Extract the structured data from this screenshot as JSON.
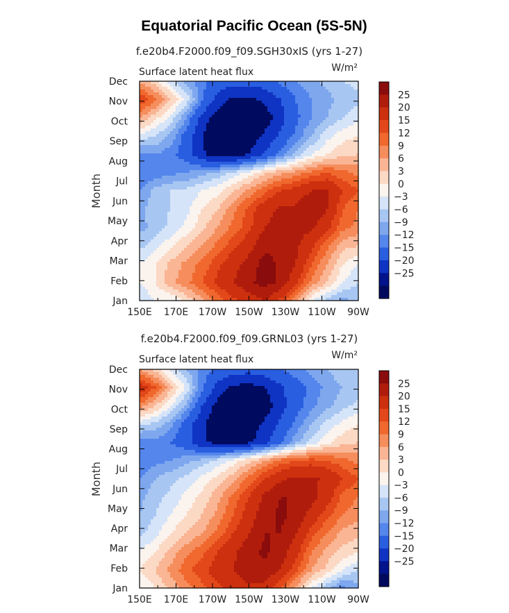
{
  "figure": {
    "title": "Equatorial Pacific Ocean (5S-5N)"
  },
  "chart_data": [
    {
      "type": "heatmap",
      "title": "f.e20b4.F2000.f09_f09.SGH30xIS (yrs 1-27)",
      "subtitle_left": "Surface latent heat flux",
      "units": "W/m²",
      "xlabel": "",
      "ylabel": "Month",
      "x_ticks": [
        "150E",
        "170E",
        "170W",
        "150W",
        "130W",
        "110W",
        "90W"
      ],
      "y_ticks": [
        "Jan",
        "Feb",
        "Mar",
        "Apr",
        "May",
        "Jun",
        "Jul",
        "Aug",
        "Sep",
        "Oct",
        "Nov",
        "Dec"
      ],
      "colorbar_levels": [
        "25",
        "20",
        "15",
        "12",
        "9",
        "6",
        "3",
        "0",
        "-3",
        "-6",
        "-9",
        "-12",
        "-15",
        "-20",
        "-25"
      ],
      "colors": [
        "#8a0c0c",
        "#b01c0c",
        "#cc300e",
        "#e2481a",
        "#f0682e",
        "#f58d5c",
        "#fab594",
        "#fbd9c4",
        "#fbf3ee",
        "#d5e4f8",
        "#a8c6f2",
        "#7ea7ee",
        "#5486ec",
        "#2a5ee0",
        "#0f34c4",
        "#02138c",
        "#000a5e"
      ],
      "grid": false,
      "legend": "right",
      "values": [
        [
          -6,
          -3,
          -3,
          1,
          5,
          10,
          14,
          17,
          20,
          14,
          6,
          -3,
          -7,
          -10,
          -8
        ],
        [
          -3,
          0,
          5,
          8,
          12,
          16,
          20,
          24,
          27,
          24,
          16,
          8,
          3,
          -3,
          -6
        ],
        [
          -3,
          0,
          4,
          7,
          10,
          14,
          18,
          22,
          27,
          24,
          20,
          12,
          6,
          0,
          -3
        ],
        [
          -7,
          -4,
          -1,
          3,
          6,
          10,
          14,
          18,
          24,
          24,
          21,
          16,
          10,
          4,
          3
        ],
        [
          -10,
          -8,
          -5,
          -2,
          2,
          6,
          10,
          14,
          20,
          22,
          22,
          21,
          16,
          10,
          8
        ],
        [
          -10,
          -7,
          -6,
          -4,
          0,
          3,
          8,
          13,
          18,
          21,
          21,
          25,
          20,
          12,
          9
        ],
        [
          -12,
          -8,
          -6,
          -5,
          -3,
          -1,
          3,
          7,
          11,
          15,
          17,
          20,
          20,
          15,
          12
        ],
        [
          -15,
          -14,
          -13,
          -12,
          -10,
          -8,
          -5,
          -2,
          2,
          5,
          7,
          10,
          12,
          10,
          8
        ],
        [
          -13,
          -12,
          -14,
          -17,
          -24,
          -28,
          -28,
          -25,
          -20,
          -14,
          -8,
          -3,
          0,
          2,
          3
        ],
        [
          -4,
          -6,
          -10,
          -17,
          -25,
          -30,
          -30,
          -28,
          -24,
          -19,
          -14,
          -9,
          -4,
          -1,
          0
        ],
        [
          6,
          1,
          -4,
          -12,
          -22,
          -28,
          -30,
          -30,
          -28,
          -22,
          -16,
          -12,
          -9,
          -6,
          -4
        ],
        [
          15,
          10,
          3,
          -4,
          -14,
          -22,
          -26,
          -26,
          -24,
          -20,
          -15,
          -12,
          -10,
          -8,
          -7
        ],
        [
          5,
          1,
          -5,
          -10,
          -14,
          -17,
          -18,
          -18,
          -17,
          -14,
          -12,
          -10,
          -8,
          -6,
          -5
        ]
      ]
    },
    {
      "type": "heatmap",
      "title": "f.e20b4.F2000.f09_f09.GRNL03 (yrs 1-27)",
      "subtitle_left": "Surface latent heat flux",
      "units": "W/m²",
      "xlabel": "",
      "ylabel": "Month",
      "x_ticks": [
        "150E",
        "170E",
        "170W",
        "150W",
        "130W",
        "110W",
        "90W"
      ],
      "y_ticks": [
        "Jan",
        "Feb",
        "Mar",
        "Apr",
        "May",
        "Jun",
        "Jul",
        "Aug",
        "Sep",
        "Oct",
        "Nov",
        "Dec"
      ],
      "colorbar_levels": [
        "25",
        "20",
        "15",
        "12",
        "9",
        "6",
        "3",
        "0",
        "-3",
        "-6",
        "-9",
        "-12",
        "-15",
        "-20",
        "-25"
      ],
      "colors": [
        "#8a0c0c",
        "#b01c0c",
        "#cc300e",
        "#e2481a",
        "#f0682e",
        "#f58d5c",
        "#fab594",
        "#fbd9c4",
        "#fbf3ee",
        "#d5e4f8",
        "#a8c6f2",
        "#7ea7ee",
        "#5486ec",
        "#2a5ee0",
        "#0f34c4",
        "#02138c",
        "#000a5e"
      ],
      "grid": false,
      "legend": "right",
      "values": [
        [
          -3,
          0,
          4,
          8,
          11,
          14,
          17,
          19,
          18,
          12,
          5,
          -3,
          -8,
          -13,
          -10
        ],
        [
          0,
          3,
          7,
          11,
          14,
          17,
          20,
          23,
          24,
          20,
          13,
          6,
          2,
          -3,
          -6
        ],
        [
          -3,
          0,
          4,
          8,
          11,
          15,
          19,
          23,
          26,
          23,
          17,
          9,
          5,
          2,
          0
        ],
        [
          -7,
          -4,
          0,
          3,
          6,
          10,
          15,
          20,
          25,
          25,
          20,
          13,
          9,
          5,
          4
        ],
        [
          -9,
          -6,
          -3,
          0,
          3,
          7,
          12,
          17,
          23,
          26,
          24,
          18,
          13,
          9,
          7
        ],
        [
          -10,
          -7,
          -5,
          -2,
          1,
          5,
          10,
          15,
          21,
          25,
          25,
          22,
          17,
          11,
          9
        ],
        [
          -12,
          -9,
          -7,
          -5,
          -2,
          1,
          5,
          10,
          15,
          19,
          21,
          21,
          19,
          15,
          12
        ],
        [
          -15,
          -13,
          -12,
          -10,
          -8,
          -5,
          -2,
          2,
          6,
          10,
          12,
          13,
          12,
          10,
          8
        ],
        [
          -14,
          -13,
          -15,
          -18,
          -24,
          -27,
          -28,
          -26,
          -22,
          -16,
          -10,
          -5,
          -1,
          2,
          3
        ],
        [
          -5,
          -7,
          -11,
          -17,
          -24,
          -29,
          -30,
          -28,
          -24,
          -19,
          -14,
          -9,
          -5,
          -2,
          0
        ],
        [
          8,
          3,
          -3,
          -10,
          -20,
          -27,
          -30,
          -30,
          -28,
          -22,
          -17,
          -13,
          -10,
          -7,
          -5
        ],
        [
          18,
          12,
          4,
          -4,
          -14,
          -22,
          -26,
          -27,
          -25,
          -21,
          -17,
          -14,
          -11,
          -9,
          -8
        ],
        [
          6,
          2,
          -4,
          -9,
          -13,
          -16,
          -18,
          -18,
          -17,
          -15,
          -13,
          -11,
          -9,
          -7,
          -6
        ]
      ]
    }
  ]
}
